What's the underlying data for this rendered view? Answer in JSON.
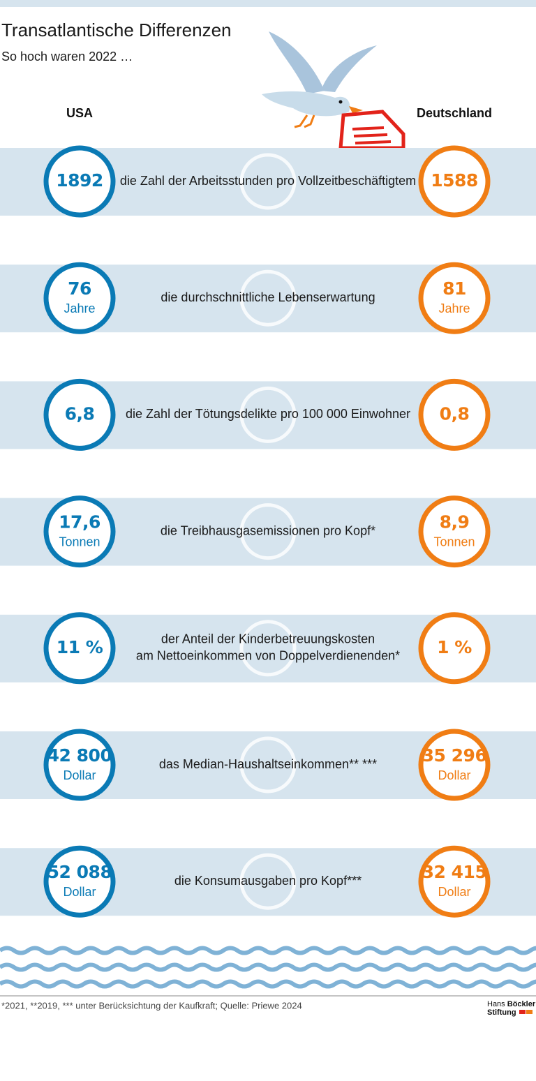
{
  "header": {
    "title": "Transatlantische Differenzen",
    "subtitle": "So hoch waren 2022 …"
  },
  "columns": [
    "USA",
    "Deutschland"
  ],
  "rows": [
    {
      "label": [
        "die Zahl der Arbeitsstunden pro Vollzeitbeschäftigtem"
      ],
      "usa": {
        "value": "1892"
      },
      "de": {
        "value": "1588"
      }
    },
    {
      "label": [
        "die durchschnittliche Lebenserwartung"
      ],
      "usa": {
        "value": "76",
        "unit": "Jahre"
      },
      "de": {
        "value": "81",
        "unit": "Jahre"
      }
    },
    {
      "label": [
        "die Zahl der Tötungsdelikte pro 100 000 Einwohner"
      ],
      "usa": {
        "value": "6,8"
      },
      "de": {
        "value": "0,8"
      }
    },
    {
      "label": [
        "die Treibhausgasemissionen pro Kopf*"
      ],
      "usa": {
        "value": "17,6",
        "unit": "Tonnen"
      },
      "de": {
        "value": "8,9",
        "unit": "Tonnen"
      }
    },
    {
      "label": [
        "der Anteil der Kinderbetreuungskosten",
        "am Nettoeinkommen von Doppelverdienenden*"
      ],
      "usa": {
        "value": "11 %"
      },
      "de": {
        "value": "1 %"
      }
    },
    {
      "label": [
        "das Median-Haushaltseinkommen** ***"
      ],
      "usa": {
        "value": "42 800",
        "unit": "Dollar"
      },
      "de": {
        "value": "35 296",
        "unit": "Dollar"
      }
    },
    {
      "label": [
        "die Konsumausgaben pro Kopf***"
      ],
      "usa": {
        "value": "52 088",
        "unit": "Dollar"
      },
      "de": {
        "value": "32 415",
        "unit": "Dollar"
      }
    }
  ],
  "footer": {
    "note": "*2021, **2019, *** unter Berücksichtung der Kaufkraft; Quelle: Priewe 2024",
    "logo": [
      "Hans",
      "Böckler",
      "Stiftung"
    ]
  }
}
